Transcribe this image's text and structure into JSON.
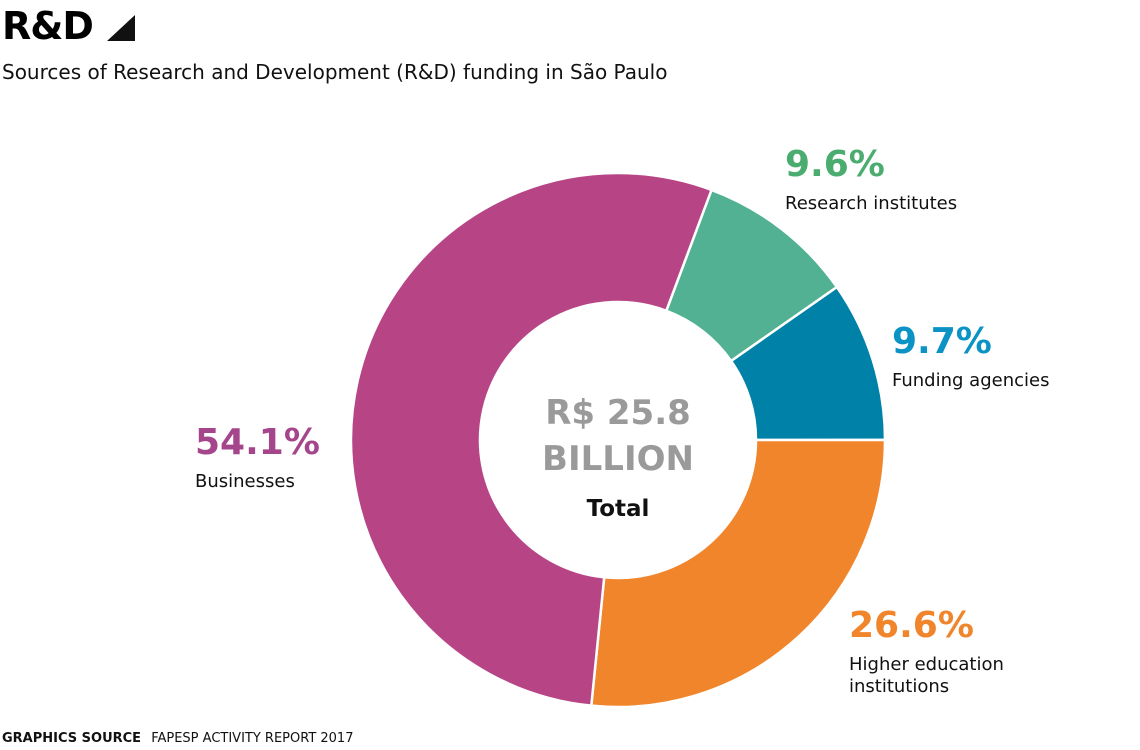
{
  "header": {
    "section": "R&D",
    "subtitle": "Sources of Research and Development (R&D) funding in São Paulo"
  },
  "center": {
    "value_line1": "R$ 25.8",
    "value_line2": "BILLION",
    "label": "Total"
  },
  "footer": {
    "source_key": "GRAPHICS SOURCE",
    "source_value": "FAPESP ACTIVITY REPORT 2017"
  },
  "chart_data": {
    "type": "pie",
    "donut": true,
    "total": "R$ 25.8 BILLION",
    "slices": [
      {
        "label": "Research institutes",
        "value": 9.6,
        "value_label": "9.6%",
        "color": "#52b193",
        "label_color": "#4aad6f"
      },
      {
        "label": "Funding agencies",
        "value": 9.7,
        "value_label": "9.7%",
        "color": "#0081a8",
        "label_color": "#0a93c4"
      },
      {
        "label": "Higher education\ninstitutions",
        "value": 26.6,
        "value_label": "26.6%",
        "color": "#f0852b",
        "label_color": "#f0852b"
      },
      {
        "label": "Businesses",
        "value": 54.1,
        "value_label": "54.1%",
        "color": "#b74586",
        "label_color": "#a5468c"
      }
    ]
  }
}
